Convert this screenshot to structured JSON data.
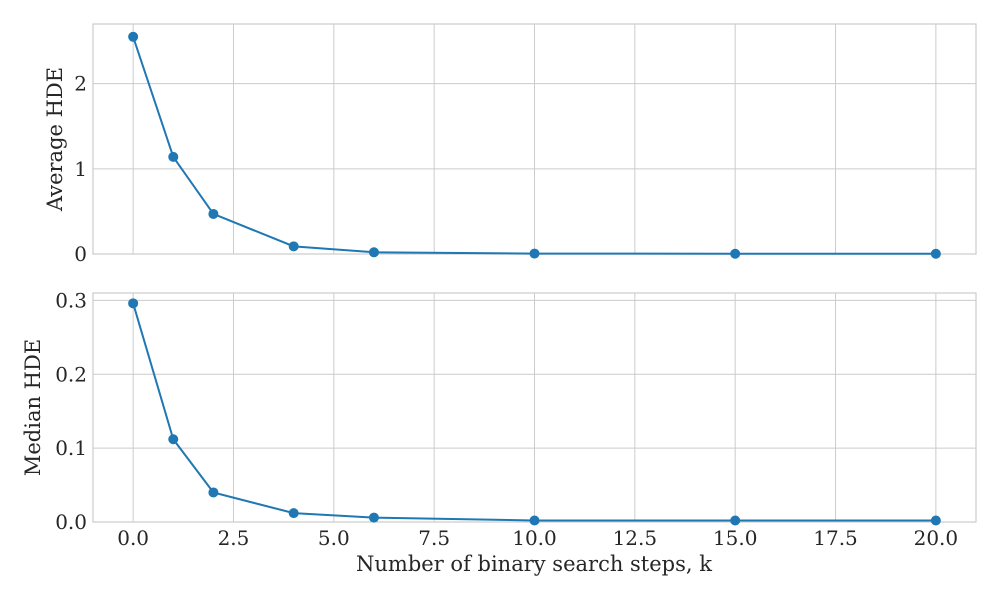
{
  "chart_data": [
    {
      "type": "line",
      "ylabel": "Average HDE",
      "xlim": [
        -1,
        21
      ],
      "ylim": [
        0,
        2.7
      ],
      "xticks": [
        0,
        2.5,
        5,
        7.5,
        10,
        12.5,
        15,
        17.5,
        20
      ],
      "yticks": [
        0,
        1,
        2
      ],
      "ytick_labels": [
        "0",
        "1",
        "2"
      ],
      "grid": true,
      "series": [
        {
          "color": "#1f77b4",
          "marker": "circle",
          "x": [
            0,
            1,
            2,
            4,
            6,
            10,
            15,
            20
          ],
          "y": [
            2.55,
            1.14,
            0.47,
            0.09,
            0.02,
            0.005,
            0.003,
            0.003
          ]
        }
      ]
    },
    {
      "type": "line",
      "xlabel": "Number of binary search steps, k",
      "ylabel": "Median HDE",
      "xlim": [
        -1,
        21
      ],
      "ylim": [
        0,
        0.31
      ],
      "xticks": [
        0,
        2.5,
        5,
        7.5,
        10,
        12.5,
        15,
        17.5,
        20
      ],
      "xtick_labels": [
        "0.0",
        "2.5",
        "5.0",
        "7.5",
        "10.0",
        "12.5",
        "15.0",
        "17.5",
        "20.0"
      ],
      "yticks": [
        0,
        0.1,
        0.2,
        0.3
      ],
      "ytick_labels": [
        "0.0",
        "0.1",
        "0.2",
        "0.3"
      ],
      "grid": true,
      "series": [
        {
          "color": "#1f77b4",
          "marker": "circle",
          "x": [
            0,
            1,
            2,
            4,
            6,
            10,
            15,
            20
          ],
          "y": [
            0.296,
            0.112,
            0.04,
            0.012,
            0.006,
            0.002,
            0.002,
            0.002
          ]
        }
      ]
    }
  ]
}
